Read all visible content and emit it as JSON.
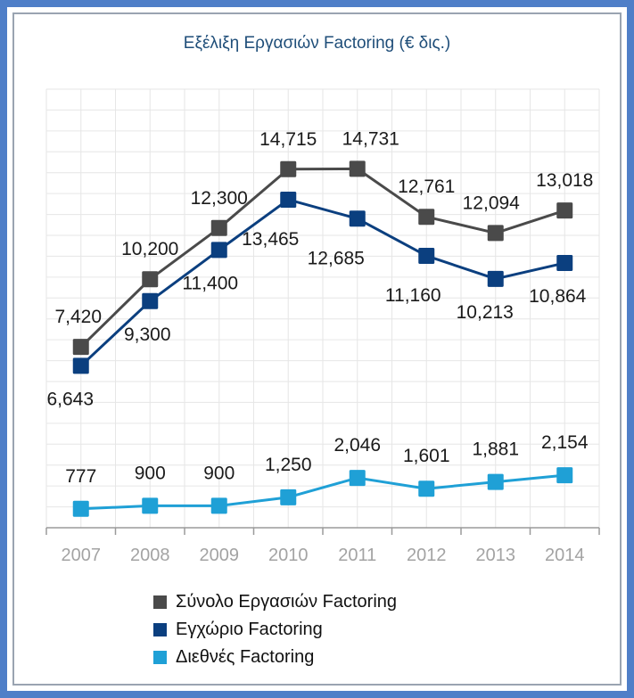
{
  "chart_data": {
    "type": "line",
    "title": "Εξέλιξη Εργασιών Factoring (€ δις.)",
    "categories": [
      "2007",
      "2008",
      "2009",
      "2010",
      "2011",
      "2012",
      "2013",
      "2014"
    ],
    "series": [
      {
        "name": "Σύνολο Εργασιών Factoring",
        "color": "#4a4a4a",
        "values": [
          7420,
          10200,
          12300,
          14715,
          14731,
          12761,
          12094,
          13018
        ],
        "labels": [
          "7,420",
          "10,200",
          "12,300",
          "14,715",
          "14,731",
          "12,761",
          "12,094",
          "13,018"
        ]
      },
      {
        "name": "Εγχώριο Factoring",
        "color": "#0b3f7f",
        "values": [
          6643,
          9300,
          11400,
          13465,
          12685,
          11160,
          10213,
          10864
        ],
        "labels": [
          "6,643",
          "9,300",
          "11,400",
          "13,465",
          "12,685",
          "11,160",
          "10,213",
          "10,864"
        ]
      },
      {
        "name": "Διεθνές Factoring",
        "color": "#1fa0d6",
        "values": [
          777,
          900,
          900,
          1250,
          2046,
          1601,
          1881,
          2154
        ],
        "labels": [
          "777",
          "900",
          "900",
          "1,250",
          "2,046",
          "1,601",
          "1,881",
          "2,154"
        ]
      }
    ],
    "xlabel": "",
    "ylabel": "",
    "ylim": [
      0,
      18000
    ],
    "grid": true,
    "legend_position": "bottom"
  }
}
